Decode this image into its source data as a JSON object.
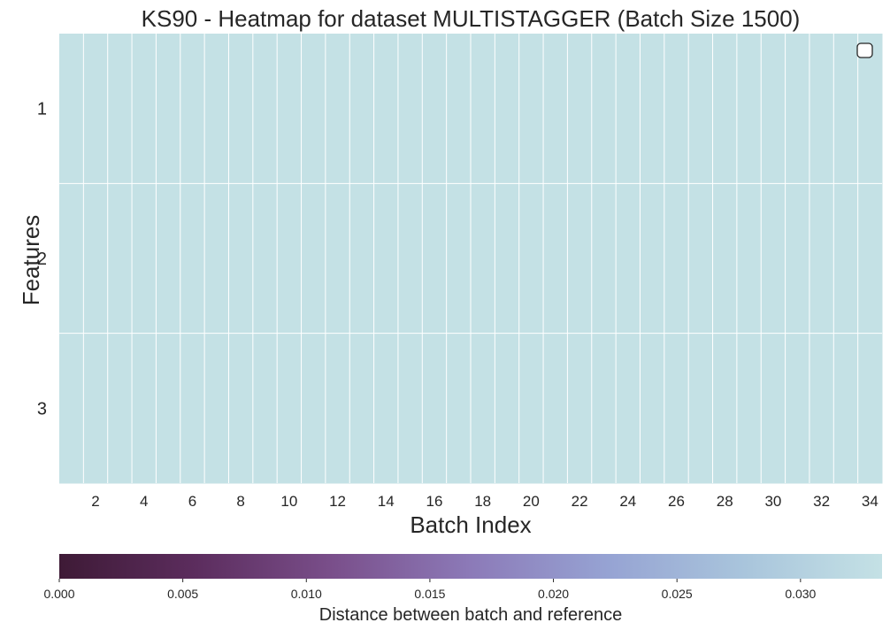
{
  "chart_data": {
    "type": "heatmap",
    "title": "KS90 - Heatmap for dataset MULTISTAGGER (Batch Size 1500)",
    "xlabel": "Batch Index",
    "ylabel": "Features",
    "x_categories": [
      1,
      2,
      3,
      4,
      5,
      6,
      7,
      8,
      9,
      10,
      11,
      12,
      13,
      14,
      15,
      16,
      17,
      18,
      19,
      20,
      21,
      22,
      23,
      24,
      25,
      26,
      27,
      28,
      29,
      30,
      31,
      32,
      33,
      34
    ],
    "x_tick_labels": [
      "2",
      "4",
      "6",
      "8",
      "10",
      "12",
      "14",
      "16",
      "18",
      "20",
      "22",
      "24",
      "26",
      "28",
      "30",
      "32",
      "34"
    ],
    "y_categories": [
      "1",
      "2",
      "3"
    ],
    "values": [
      [
        0.0333,
        0.0333,
        0.0333,
        0.0333,
        0.0333,
        0.0333,
        0.0333,
        0.0333,
        0.0333,
        0.0333,
        0.0333,
        0.0333,
        0.0333,
        0.0333,
        0.0333,
        0.0333,
        0.0333,
        0.0333,
        0.0333,
        0.0333,
        0.0333,
        0.0333,
        0.0333,
        0.0333,
        0.0333,
        0.0333,
        0.0333,
        0.0333,
        0.0333,
        0.0333,
        0.0333,
        0.0333,
        0.0333,
        0.0333
      ],
      [
        0.0333,
        0.0333,
        0.0333,
        0.0333,
        0.0333,
        0.0333,
        0.0333,
        0.0333,
        0.0333,
        0.0333,
        0.0333,
        0.0333,
        0.0333,
        0.0333,
        0.0333,
        0.0333,
        0.0333,
        0.0333,
        0.0333,
        0.0333,
        0.0333,
        0.0333,
        0.0333,
        0.0333,
        0.0333,
        0.0333,
        0.0333,
        0.0333,
        0.0333,
        0.0333,
        0.0333,
        0.0333,
        0.0333,
        0.0333
      ],
      [
        0.0333,
        0.0333,
        0.0333,
        0.0333,
        0.0333,
        0.0333,
        0.0333,
        0.0333,
        0.0333,
        0.0333,
        0.0333,
        0.0333,
        0.0333,
        0.0333,
        0.0333,
        0.0333,
        0.0333,
        0.0333,
        0.0333,
        0.0333,
        0.0333,
        0.0333,
        0.0333,
        0.0333,
        0.0333,
        0.0333,
        0.0333,
        0.0333,
        0.0333,
        0.0333,
        0.0333,
        0.0333,
        0.0333,
        0.0333
      ]
    ],
    "colorbar": {
      "label": "Distance between batch and reference",
      "vmin": 0.0,
      "vmax": 0.0333,
      "tick_values": [
        0.0,
        0.005,
        0.01,
        0.015,
        0.02,
        0.025,
        0.03
      ],
      "tick_labels": [
        "0.000",
        "0.005",
        "0.010",
        "0.015",
        "0.020",
        "0.025",
        "0.030"
      ],
      "orientation": "horizontal",
      "position": "bottom",
      "colormap": [
        "#3e1a36",
        "#5c2d5e",
        "#7a4f8b",
        "#8c7ab8",
        "#96a3d3",
        "#a9c5dc",
        "#c4e1e5"
      ]
    },
    "legend": {
      "placement": "top-right",
      "entries": []
    },
    "grid": false,
    "cell_color": "#c6e1e7"
  }
}
